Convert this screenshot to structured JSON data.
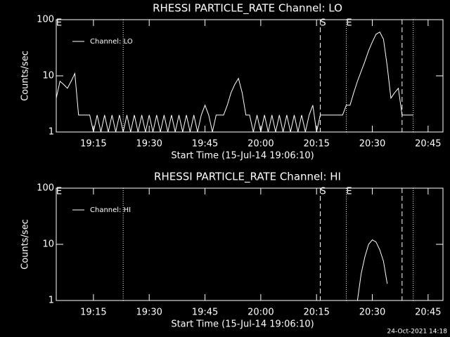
{
  "chart_data": [
    {
      "type": "line",
      "title": "RHESSI PARTICLE_RATE Channel: LO",
      "x_label": "Start Time (15-Jul-14 19:06:10)",
      "y_label": "Counts/sec",
      "log_scale": true,
      "legend": "upper left",
      "xlim": [
        "19:05",
        "20:49"
      ],
      "xticks": [
        "19:15",
        "19:30",
        "19:45",
        "20:00",
        "20:15",
        "20:30",
        "20:45"
      ],
      "ylim": [
        1,
        100
      ],
      "yticks": [
        1,
        10,
        100
      ],
      "markers": [
        {
          "x": "19:05",
          "label": "E"
        },
        {
          "x": "19:23",
          "style": "dotted"
        },
        {
          "x": "20:16",
          "style": "dashed",
          "label": "S"
        },
        {
          "x": "20:23",
          "style": "dotted",
          "label": "E"
        },
        {
          "x": "20:38",
          "style": "dashed"
        },
        {
          "x": "20:41",
          "style": "dotted"
        }
      ],
      "x": [
        "19:05",
        "19:06",
        "19:07",
        "19:08",
        "19:09",
        "19:10",
        "19:11",
        "19:12",
        "19:13",
        "19:14",
        "19:15",
        "19:16",
        "19:17",
        "19:18",
        "19:19",
        "19:20",
        "19:21",
        "19:22",
        "19:23",
        "19:24",
        "19:25",
        "19:26",
        "19:27",
        "19:28",
        "19:29",
        "19:30",
        "19:31",
        "19:32",
        "19:33",
        "19:34",
        "19:35",
        "19:36",
        "19:37",
        "19:38",
        "19:39",
        "19:40",
        "19:41",
        "19:42",
        "19:43",
        "19:44",
        "19:45",
        "19:46",
        "19:47",
        "19:48",
        "19:49",
        "19:50",
        "19:51",
        "19:52",
        "19:53",
        "19:54",
        "19:55",
        "19:56",
        "19:57",
        "19:58",
        "19:59",
        "20:00",
        "20:01",
        "20:02",
        "20:03",
        "20:04",
        "20:05",
        "20:06",
        "20:07",
        "20:08",
        "20:09",
        "20:10",
        "20:11",
        "20:12",
        "20:13",
        "20:14",
        "20:15",
        "20:16",
        "20:17",
        "20:18",
        "20:19",
        "20:20",
        "20:21",
        "20:22",
        "20:23",
        "20:24",
        "20:25",
        "20:26",
        "20:27",
        "20:28",
        "20:29",
        "20:30",
        "20:31",
        "20:32",
        "20:33",
        "20:34",
        "20:35",
        "20:36",
        "20:37",
        "20:38",
        "20:39",
        "20:40",
        "20:41"
      ],
      "series": [
        {
          "name": "Channel: LO",
          "color": "#ffffff",
          "values": [
            4,
            8,
            7,
            6,
            8,
            11,
            2,
            2,
            2,
            2,
            1,
            2,
            1,
            2,
            1,
            2,
            1,
            2,
            1,
            2,
            1,
            2,
            1,
            2,
            1,
            2,
            1,
            2,
            1,
            2,
            1,
            2,
            1,
            2,
            1,
            2,
            1,
            2,
            1,
            2,
            3,
            2,
            1,
            2,
            2,
            2,
            3,
            5,
            7,
            9,
            5,
            2,
            2,
            1,
            2,
            1,
            2,
            1,
            2,
            1,
            2,
            1,
            2,
            1,
            2,
            1,
            2,
            1,
            2,
            3,
            1,
            2,
            2,
            2,
            2,
            2,
            2,
            2,
            3,
            3,
            5,
            8,
            12,
            18,
            28,
            40,
            55,
            60,
            45,
            15,
            4,
            5,
            6,
            2,
            2,
            2,
            2
          ]
        }
      ]
    },
    {
      "type": "line",
      "title": "RHESSI PARTICLE_RATE Channel: HI",
      "x_label": "Start Time (15-Jul-14 19:06:10)",
      "y_label": "Counts/sec",
      "log_scale": true,
      "legend": "upper left",
      "xlim": [
        "19:05",
        "20:49"
      ],
      "xticks": [
        "19:15",
        "19:30",
        "19:45",
        "20:00",
        "20:15",
        "20:30",
        "20:45"
      ],
      "ylim": [
        1,
        100
      ],
      "yticks": [
        1,
        10,
        100
      ],
      "markers": [
        {
          "x": "19:05",
          "label": "E"
        },
        {
          "x": "19:23",
          "style": "dotted"
        },
        {
          "x": "20:16",
          "style": "dashed",
          "label": "S"
        },
        {
          "x": "20:23",
          "style": "dotted",
          "label": "E"
        },
        {
          "x": "20:38",
          "style": "dashed"
        },
        {
          "x": "20:41",
          "style": "dotted"
        }
      ],
      "x": [
        "20:26",
        "20:27",
        "20:28",
        "20:29",
        "20:30",
        "20:31",
        "20:32",
        "20:33",
        "20:34"
      ],
      "series": [
        {
          "name": "Channel: HI",
          "color": "#ffffff",
          "values": [
            1,
            3,
            6,
            10,
            12,
            11,
            8,
            5,
            2
          ]
        }
      ]
    }
  ],
  "footer": "24-Oct-2021 14:18"
}
